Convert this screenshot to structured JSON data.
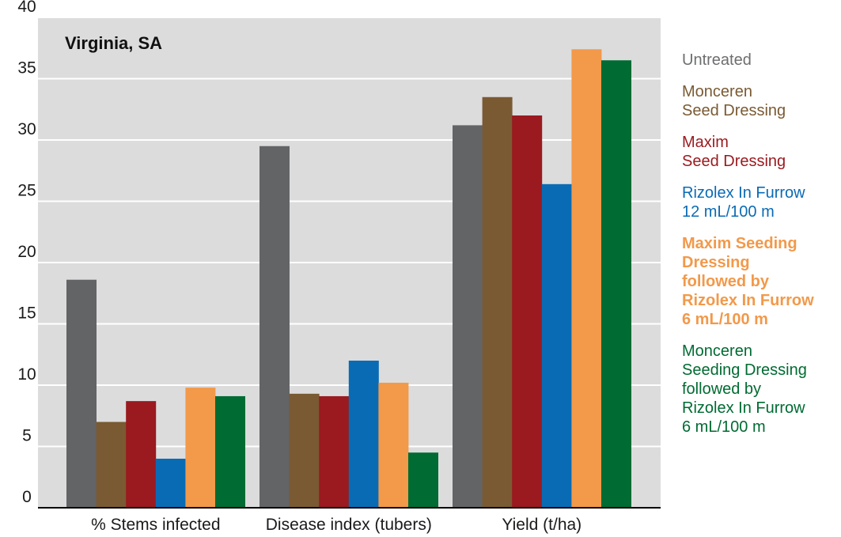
{
  "chart_data": {
    "type": "bar",
    "title": "Virginia, SA",
    "xlabel": "",
    "ylabel": "",
    "categories": [
      "% Stems infected",
      "Disease index (tubers)",
      "Yield (t/ha)"
    ],
    "yticks": [
      "0",
      "5",
      "10",
      "15",
      "20",
      "25",
      "30",
      "35",
      "40"
    ],
    "ylim": [
      0,
      40
    ],
    "grid": true,
    "background": "#dcdcdd",
    "legend_position": "right",
    "series": [
      {
        "name": "Untreated",
        "color": "#636466",
        "values": [
          18.6,
          29.5,
          31.2
        ]
      },
      {
        "name": "Monceren\nSeed Dressing",
        "color": "#7a5a33",
        "values": [
          7.0,
          9.3,
          33.5
        ]
      },
      {
        "name": "Maxim\nSeed Dressing",
        "color": "#9a1a1f",
        "values": [
          8.7,
          9.1,
          32.0
        ]
      },
      {
        "name": "Rizolex In Furrow\n12 mL/100 m",
        "color": "#0a6bb5",
        "values": [
          4.0,
          12.0,
          26.4
        ]
      },
      {
        "name": "Maxim Seeding\nDressing\nfollowed by\nRizolex In Furrow\n6 mL/100 m",
        "color": "#f2994a",
        "bold": true,
        "values": [
          9.8,
          10.2,
          37.4
        ]
      },
      {
        "name": "Monceren\nSeeding Dressing\nfollowed by\nRizolex In Furrow\n6 mL/100 m",
        "color": "#006b32",
        "values": [
          9.1,
          4.5,
          36.5
        ]
      }
    ]
  }
}
